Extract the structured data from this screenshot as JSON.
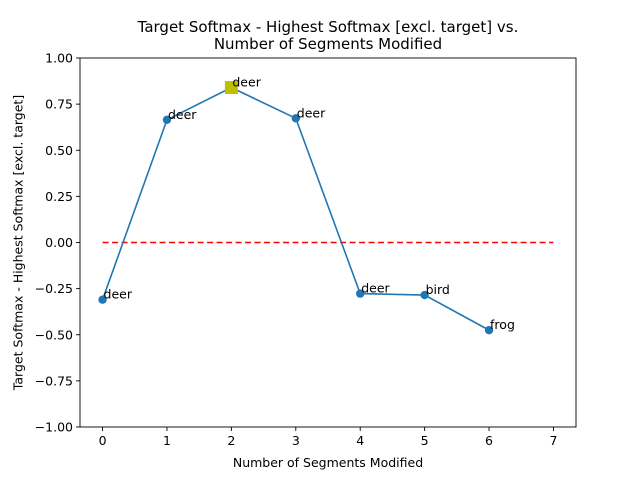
{
  "chart_data": {
    "type": "line",
    "title_lines": [
      "Target Softmax - Highest Softmax [excl. target] vs.",
      "Number of Segments Modified"
    ],
    "xlabel": "Number of Segments Modified",
    "ylabel": "Target Softmax - Highest Softmax [excl. target]",
    "xlim": [
      -0.35,
      7.35
    ],
    "ylim": [
      -1.0,
      1.0
    ],
    "xticks": [
      0,
      1,
      2,
      3,
      4,
      5,
      6,
      7
    ],
    "xtick_labels": [
      "0",
      "1",
      "2",
      "3",
      "4",
      "5",
      "6",
      "7"
    ],
    "yticks": [
      -1.0,
      -0.75,
      -0.5,
      -0.25,
      0.0,
      0.25,
      0.5,
      0.75,
      1.0
    ],
    "ytick_labels": [
      "−1.00",
      "−0.75",
      "−0.50",
      "−0.25",
      "0.00",
      "0.25",
      "0.50",
      "0.75",
      "1.00"
    ],
    "grid": false,
    "series": [
      {
        "x": [
          0,
          1,
          2,
          3,
          4,
          5,
          6
        ],
        "y": [
          -0.31,
          0.665,
          0.84,
          0.673,
          -0.277,
          -0.285,
          -0.475
        ],
        "labels": [
          "deer",
          "deer",
          "deer",
          "deer",
          "deer",
          "bird",
          "frog"
        ],
        "color": "#1f77b4"
      }
    ],
    "highlight": {
      "x": 2,
      "y": 0.84,
      "color": "#bfbf00",
      "marker": "square"
    },
    "reference_line": {
      "y": 0.0,
      "x_range": [
        0,
        7
      ],
      "color": "#ff0000",
      "style": "dashed"
    }
  }
}
